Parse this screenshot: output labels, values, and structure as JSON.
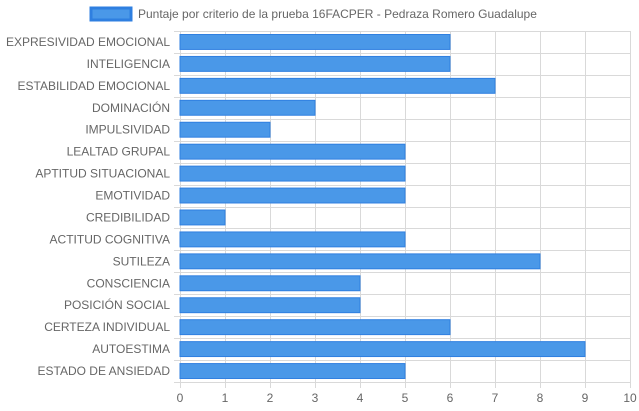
{
  "chart_data": {
    "type": "bar",
    "orientation": "horizontal",
    "legend": {
      "position": "top",
      "entries": [
        {
          "label": "Puntaje por criterio de la prueba 16FACPER - Pedraza Romero Guadalupe",
          "color": "#4a98e8",
          "border": "#2f7fe0"
        }
      ]
    },
    "categories": [
      "EXPRESIVIDAD EMOCIONAL",
      "INTELIGENCIA",
      "ESTABILIDAD EMOCIONAL",
      "DOMINACIÓN",
      "IMPULSIVIDAD",
      "LEALTAD GRUPAL",
      "APTITUD SITUACIONAL",
      "EMOTIVIDAD",
      "CREDIBILIDAD",
      "ACTITUD COGNITIVA",
      "SUTILEZA",
      "CONSCIENCIA",
      "POSICIÓN SOCIAL",
      "CERTEZA INDIVIDUAL",
      "AUTOESTIMA",
      "ESTADO DE ANSIEDAD"
    ],
    "values": [
      6,
      6,
      7,
      3,
      2,
      5,
      5,
      5,
      1,
      5,
      8,
      4,
      4,
      6,
      9,
      5
    ],
    "xlim": [
      0,
      10
    ],
    "xticks": [
      "0",
      "1",
      "2",
      "3",
      "4",
      "5",
      "6",
      "7",
      "8",
      "9",
      "10"
    ],
    "grid": true,
    "colors": {
      "bar": "#4a98e8",
      "bar_border": "#2f7fe0",
      "grid": "#d9d9d9",
      "text": "#666666"
    }
  }
}
